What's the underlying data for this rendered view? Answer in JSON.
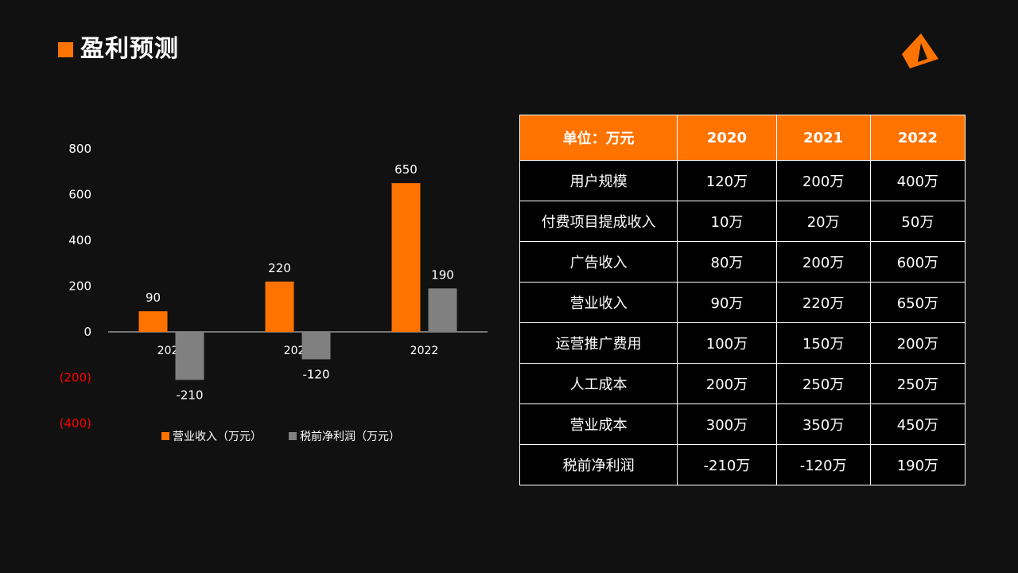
{
  "header": {
    "title": "盈利预测"
  },
  "colors": {
    "accent": "#ff7300",
    "secondary": "#808080",
    "negative_tick": "#ff0000"
  },
  "logo": {
    "icon": "orange-triangle-logo-icon"
  },
  "chart_data": {
    "type": "bar",
    "categories": [
      "2020",
      "2021",
      "2022"
    ],
    "series": [
      {
        "name": "营业收入（万元）",
        "values": [
          90,
          220,
          650
        ],
        "color": "#ff7300"
      },
      {
        "name": "税前净利润（万元）",
        "values": [
          -210,
          -120,
          190
        ],
        "color": "#808080"
      }
    ],
    "data_labels": [
      [
        "90",
        "220",
        "650"
      ],
      [
        "-210",
        "-120",
        "190"
      ]
    ],
    "y_ticks": [
      800,
      600,
      400,
      200,
      0,
      -200,
      -400
    ],
    "y_tick_labels": [
      "800",
      "600",
      "400",
      "200",
      "0",
      "(200)",
      "(400)"
    ],
    "ylim": [
      -400,
      800
    ],
    "grid": false,
    "legend_position": "bottom"
  },
  "table": {
    "headers": [
      "单位：万元",
      "2020",
      "2021",
      "2022"
    ],
    "rows": [
      [
        "用户规模",
        "120万",
        "200万",
        "400万"
      ],
      [
        "付费项目提成收入",
        "10万",
        "20万",
        "50万"
      ],
      [
        "广告收入",
        "80万",
        "200万",
        "600万"
      ],
      [
        "营业收入",
        "90万",
        "220万",
        "650万"
      ],
      [
        "运营推广费用",
        "100万",
        "150万",
        "200万"
      ],
      [
        "人工成本",
        "200万",
        "250万",
        "250万"
      ],
      [
        "营业成本",
        "300万",
        "350万",
        "450万"
      ],
      [
        "税前净利润",
        "-210万",
        "-120万",
        "190万"
      ]
    ]
  }
}
